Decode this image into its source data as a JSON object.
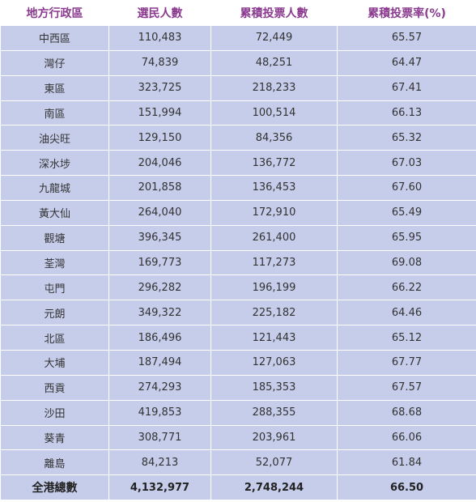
{
  "table": {
    "headers": [
      "地方行政區",
      "選民人數",
      "累積投票人數",
      "累積投票率(%)"
    ],
    "rows": [
      [
        "中西區",
        "110,483",
        "72,449",
        "65.57"
      ],
      [
        "灣仔",
        "74,839",
        "48,251",
        "64.47"
      ],
      [
        "東區",
        "323,725",
        "218,233",
        "67.41"
      ],
      [
        "南區",
        "151,994",
        "100,514",
        "66.13"
      ],
      [
        "油尖旺",
        "129,150",
        "84,356",
        "65.32"
      ],
      [
        "深水埗",
        "204,046",
        "136,772",
        "67.03"
      ],
      [
        "九龍城",
        "201,858",
        "136,453",
        "67.60"
      ],
      [
        "黃大仙",
        "264,040",
        "172,910",
        "65.49"
      ],
      [
        "觀塘",
        "396,345",
        "261,400",
        "65.95"
      ],
      [
        "荃灣",
        "169,773",
        "117,273",
        "69.08"
      ],
      [
        "屯門",
        "296,282",
        "196,199",
        "66.22"
      ],
      [
        "元朗",
        "349,322",
        "225,182",
        "64.46"
      ],
      [
        "北區",
        "186,496",
        "121,443",
        "65.12"
      ],
      [
        "大埔",
        "187,494",
        "127,063",
        "67.77"
      ],
      [
        "西貢",
        "274,293",
        "185,353",
        "67.57"
      ],
      [
        "沙田",
        "419,853",
        "288,355",
        "68.68"
      ],
      [
        "葵青",
        "308,771",
        "203,961",
        "66.06"
      ],
      [
        "離島",
        "84,213",
        "52,077",
        "61.84"
      ]
    ],
    "total": [
      "全港總數",
      "4,132,977",
      "2,748,244",
      "66.50"
    ]
  },
  "colors": {
    "header_text": "#8a3a8f",
    "row_background": "#c6cdea",
    "grid_lines": "#ffffff"
  }
}
